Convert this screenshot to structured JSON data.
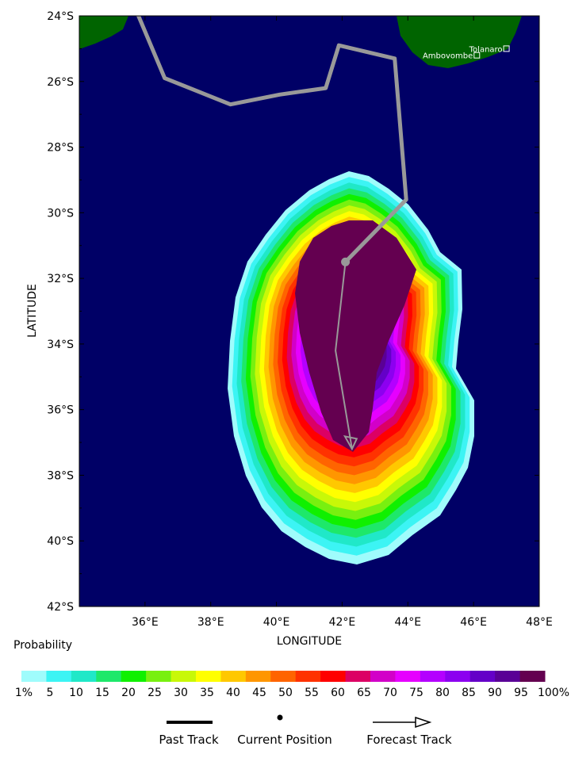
{
  "axes": {
    "xlabel": "LONGITUDE",
    "ylabel": "LATITUDE",
    "lat_ticks": [
      "24°S",
      "26°S",
      "28°S",
      "30°S",
      "32°S",
      "34°S",
      "36°S",
      "38°S",
      "40°S",
      "42°S"
    ],
    "lon_ticks": [
      "36°E",
      "38°E",
      "40°E",
      "42°E",
      "44°E",
      "46°E",
      "48°E"
    ],
    "lat_range": [
      -24,
      -42
    ],
    "lon_range": [
      34,
      48
    ]
  },
  "cities": [
    {
      "name": "Tolanaro",
      "lat": -25.0,
      "lon": 47.0
    },
    {
      "name": "Ambovombe",
      "lat": -25.2,
      "lon": 46.1
    }
  ],
  "legend": {
    "title": "Probability",
    "labels": [
      "1%",
      "5",
      "10",
      "15",
      "20",
      "25",
      "30",
      "35",
      "40",
      "45",
      "50",
      "55",
      "60",
      "65",
      "70",
      "75",
      "80",
      "85",
      "90",
      "95",
      "100%"
    ],
    "colors": [
      "#9ffcfc",
      "#3cf4f4",
      "#20e8c8",
      "#1ee86a",
      "#10f000",
      "#78f010",
      "#c8f808",
      "#ffff00",
      "#ffc800",
      "#ff9600",
      "#ff6400",
      "#ff3200",
      "#ff0000",
      "#dc0064",
      "#d200c8",
      "#e600ff",
      "#b400ff",
      "#8c00f0",
      "#6400c8",
      "#5a0096",
      "#640050"
    ]
  },
  "key": {
    "past": "Past Track",
    "current": "Current Position",
    "forecast": "Forecast Track"
  },
  "colors": {
    "ocean": "#000066",
    "land": "#006400",
    "track": "#999999",
    "core": "#640050"
  },
  "past_track": [
    [
      -23.6,
      35.6
    ],
    [
      -24.0,
      35.8
    ],
    [
      -25.9,
      36.6
    ],
    [
      -26.7,
      38.6
    ],
    [
      -26.4,
      40.1
    ],
    [
      -26.2,
      41.5
    ],
    [
      -24.9,
      41.9
    ],
    [
      -25.3,
      43.6
    ],
    [
      -29.6,
      43.95
    ],
    [
      -31.5,
      42.1
    ]
  ],
  "forecast_track": [
    [
      -31.5,
      42.1
    ],
    [
      -34.2,
      41.8
    ],
    [
      -37.2,
      42.3
    ]
  ],
  "current_position": [
    -31.5,
    42.1
  ]
}
